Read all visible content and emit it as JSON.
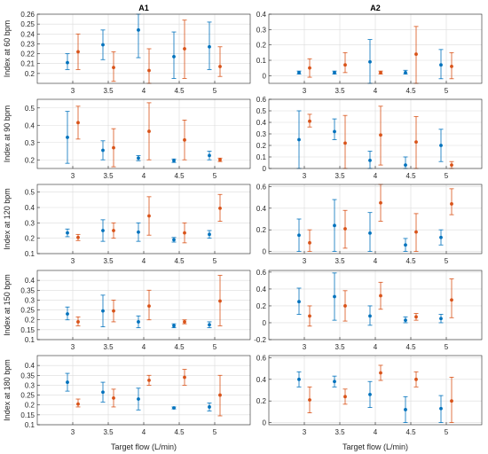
{
  "colors": {
    "series1": "#0072BD",
    "series2": "#D95319"
  },
  "chart_data": {
    "type": "scatter",
    "style": "point estimates with error bars (two series per x, offset left/right)",
    "columns": [
      "A1",
      "A2"
    ],
    "row_labels": [
      "Index at 60 bpm",
      "Index at 90 bpm",
      "Index at 120 bpm",
      "Index at 150 bpm",
      "Index at 180 bpm"
    ],
    "xlabel": "Target flow (L/min)",
    "x": [
      3,
      3.5,
      4,
      4.5,
      5
    ],
    "x_tick_labels": [
      "3",
      "3.5",
      "4",
      "4.5",
      "5"
    ],
    "xlim": [
      2.5,
      5.5
    ],
    "grid": true,
    "panels": [
      {
        "col": 0,
        "row": 0,
        "ylim": [
          0.19,
          0.26
        ],
        "yticks": [
          0.2,
          0.21,
          0.22,
          0.23,
          0.24,
          0.25,
          0.26
        ],
        "ytick_labels": [
          "0.2",
          "0.21",
          "0.22",
          "0.23",
          "0.24",
          "0.25",
          "0.26"
        ],
        "series": [
          {
            "mean": [
              0.211,
              0.229,
              0.244,
              0.217,
              0.227
            ],
            "low": [
              0.204,
              0.214,
              0.216,
              0.195,
              0.204
            ],
            "high": [
              0.22,
              0.244,
              0.26,
              0.242,
              0.252
            ]
          },
          {
            "mean": [
              0.222,
              0.206,
              0.203,
              0.225,
              0.207
            ],
            "low": [
              0.204,
              0.192,
              0.19,
              0.195,
              0.197
            ],
            "high": [
              0.24,
              0.222,
              0.225,
              0.254,
              0.227
            ]
          }
        ]
      },
      {
        "col": 1,
        "row": 0,
        "ylim": [
          -0.05,
          0.4
        ],
        "yticks": [
          0,
          0.1,
          0.2,
          0.3,
          0.4
        ],
        "ytick_labels": [
          "0",
          "0.1",
          "0.2",
          "0.3",
          "0.4"
        ],
        "series": [
          {
            "mean": [
              0.02,
              0.02,
              0.09,
              0.02,
              0.07
            ],
            "low": [
              0.01,
              0.01,
              -0.05,
              0.01,
              -0.02
            ],
            "high": [
              0.03,
              0.03,
              0.235,
              0.035,
              0.17
            ]
          },
          {
            "mean": [
              0.05,
              0.07,
              0.02,
              0.14,
              0.06
            ],
            "low": [
              -0.01,
              0.02,
              0.01,
              -0.05,
              -0.02
            ],
            "high": [
              0.11,
              0.15,
              0.03,
              0.32,
              0.15
            ]
          }
        ]
      },
      {
        "col": 0,
        "row": 1,
        "ylim": [
          0.15,
          0.55
        ],
        "yticks": [
          0.2,
          0.3,
          0.4,
          0.5
        ],
        "ytick_labels": [
          "0.2",
          "0.3",
          "0.4",
          "0.5"
        ],
        "series": [
          {
            "mean": [
              0.33,
              0.255,
              0.21,
              0.195,
              0.225
            ],
            "low": [
              0.18,
              0.2,
              0.195,
              0.185,
              0.2
            ],
            "high": [
              0.48,
              0.31,
              0.225,
              0.205,
              0.25
            ]
          },
          {
            "mean": [
              0.415,
              0.27,
              0.365,
              0.315,
              0.2
            ],
            "low": [
              0.32,
              0.16,
              0.2,
              0.2,
              0.19
            ],
            "high": [
              0.51,
              0.38,
              0.53,
              0.43,
              0.21
            ]
          }
        ]
      },
      {
        "col": 1,
        "row": 1,
        "ylim": [
          0,
          0.6
        ],
        "yticks": [
          0,
          0.1,
          0.2,
          0.3,
          0.4,
          0.5,
          0.6
        ],
        "ytick_labels": [
          "0",
          "0.1",
          "0.2",
          "0.3",
          "0.4",
          "0.5",
          "0.6"
        ],
        "series": [
          {
            "mean": [
              0.25,
              0.32,
              0.07,
              0.03,
              0.2
            ],
            "low": [
              0.0,
              0.25,
              0.0,
              0.0,
              0.06
            ],
            "high": [
              0.5,
              0.43,
              0.15,
              0.1,
              0.34
            ]
          },
          {
            "mean": [
              0.41,
              0.22,
              0.29,
              0.23,
              0.03
            ],
            "low": [
              0.36,
              0.0,
              0.03,
              0.0,
              0.0
            ],
            "high": [
              0.47,
              0.46,
              0.54,
              0.45,
              0.06
            ]
          }
        ]
      },
      {
        "col": 0,
        "row": 2,
        "ylim": [
          0.1,
          0.55
        ],
        "yticks": [
          0.1,
          0.2,
          0.3,
          0.4,
          0.5
        ],
        "ytick_labels": [
          "0.1",
          "0.2",
          "0.3",
          "0.4",
          "0.5"
        ],
        "series": [
          {
            "mean": [
              0.235,
              0.25,
              0.24,
              0.19,
              0.225
            ],
            "low": [
              0.21,
              0.18,
              0.18,
              0.175,
              0.2
            ],
            "high": [
              0.26,
              0.32,
              0.3,
              0.205,
              0.25
            ]
          },
          {
            "mean": [
              0.205,
              0.25,
              0.345,
              0.235,
              0.395
            ],
            "low": [
              0.185,
              0.2,
              0.22,
              0.17,
              0.31
            ],
            "high": [
              0.225,
              0.3,
              0.47,
              0.3,
              0.485
            ]
          }
        ]
      },
      {
        "col": 1,
        "row": 2,
        "ylim": [
          -0.02,
          0.62
        ],
        "yticks": [
          0,
          0.2,
          0.4,
          0.6
        ],
        "ytick_labels": [
          "0",
          "0.2",
          "0.4",
          "0.6"
        ],
        "series": [
          {
            "mean": [
              0.15,
              0.24,
              0.17,
              0.06,
              0.13
            ],
            "low": [
              0.0,
              0.0,
              0.0,
              0.0,
              0.06
            ],
            "high": [
              0.3,
              0.48,
              0.36,
              0.12,
              0.2
            ]
          },
          {
            "mean": [
              0.08,
              0.21,
              0.45,
              0.18,
              0.44
            ],
            "low": [
              0.0,
              0.03,
              0.28,
              0.0,
              0.34
            ],
            "high": [
              0.2,
              0.38,
              0.62,
              0.35,
              0.58
            ]
          }
        ]
      },
      {
        "col": 0,
        "row": 3,
        "ylim": [
          0.1,
          0.45
        ],
        "yticks": [
          0.1,
          0.15,
          0.2,
          0.25,
          0.3,
          0.35,
          0.4
        ],
        "ytick_labels": [
          "0.1",
          "0.15",
          "0.2",
          "0.25",
          "0.3",
          "0.35",
          "0.4"
        ],
        "series": [
          {
            "mean": [
              0.23,
              0.245,
              0.19,
              0.17,
              0.175
            ],
            "low": [
              0.2,
              0.165,
              0.16,
              0.16,
              0.16
            ],
            "high": [
              0.265,
              0.325,
              0.22,
              0.18,
              0.19
            ]
          },
          {
            "mean": [
              0.19,
              0.245,
              0.27,
              0.19,
              0.295
            ],
            "low": [
              0.17,
              0.19,
              0.2,
              0.18,
              0.17
            ],
            "high": [
              0.215,
              0.3,
              0.35,
              0.2,
              0.425
            ]
          }
        ]
      },
      {
        "col": 1,
        "row": 3,
        "ylim": [
          -0.2,
          0.62
        ],
        "yticks": [
          -0.2,
          0,
          0.2,
          0.4,
          0.6
        ],
        "ytick_labels": [
          "-0.2",
          "0",
          "0.2",
          "0.4",
          "0.6"
        ],
        "series": [
          {
            "mean": [
              0.25,
              0.31,
              0.08,
              0.03,
              0.05
            ],
            "low": [
              0.1,
              0.03,
              -0.03,
              0.0,
              0.0
            ],
            "high": [
              0.41,
              0.59,
              0.2,
              0.07,
              0.1
            ]
          },
          {
            "mean": [
              0.08,
              0.2,
              0.32,
              0.07,
              0.27
            ],
            "low": [
              -0.04,
              0.02,
              0.16,
              0.03,
              0.06
            ],
            "high": [
              0.2,
              0.38,
              0.48,
              0.11,
              0.52
            ]
          }
        ]
      },
      {
        "col": 0,
        "row": 4,
        "ylim": [
          0.1,
          0.45
        ],
        "yticks": [
          0.1,
          0.15,
          0.2,
          0.25,
          0.3,
          0.35,
          0.4
        ],
        "ytick_labels": [
          "0.1",
          "0.15",
          "0.2",
          "0.25",
          "0.3",
          "0.35",
          "0.4"
        ],
        "series": [
          {
            "mean": [
              0.315,
              0.265,
              0.23,
              0.185,
              0.19
            ],
            "low": [
              0.27,
              0.215,
              0.175,
              0.18,
              0.17
            ],
            "high": [
              0.36,
              0.315,
              0.285,
              0.19,
              0.21
            ]
          },
          {
            "mean": [
              0.205,
              0.235,
              0.325,
              0.34,
              0.25
            ],
            "low": [
              0.19,
              0.19,
              0.3,
              0.3,
              0.145
            ],
            "high": [
              0.23,
              0.28,
              0.35,
              0.38,
              0.35
            ]
          }
        ]
      },
      {
        "col": 1,
        "row": 4,
        "ylim": [
          -0.02,
          0.62
        ],
        "yticks": [
          0,
          0.2,
          0.4,
          0.6
        ],
        "ytick_labels": [
          "0",
          "0.2",
          "0.4",
          "0.6"
        ],
        "series": [
          {
            "mean": [
              0.4,
              0.38,
              0.26,
              0.12,
              0.13
            ],
            "low": [
              0.33,
              0.33,
              0.14,
              0.0,
              0.0
            ],
            "high": [
              0.47,
              0.43,
              0.38,
              0.24,
              0.25
            ]
          },
          {
            "mean": [
              0.21,
              0.24,
              0.46,
              0.4,
              0.2
            ],
            "low": [
              0.09,
              0.17,
              0.39,
              0.33,
              0.0
            ],
            "high": [
              0.33,
              0.31,
              0.53,
              0.47,
              0.42
            ]
          }
        ]
      }
    ]
  }
}
